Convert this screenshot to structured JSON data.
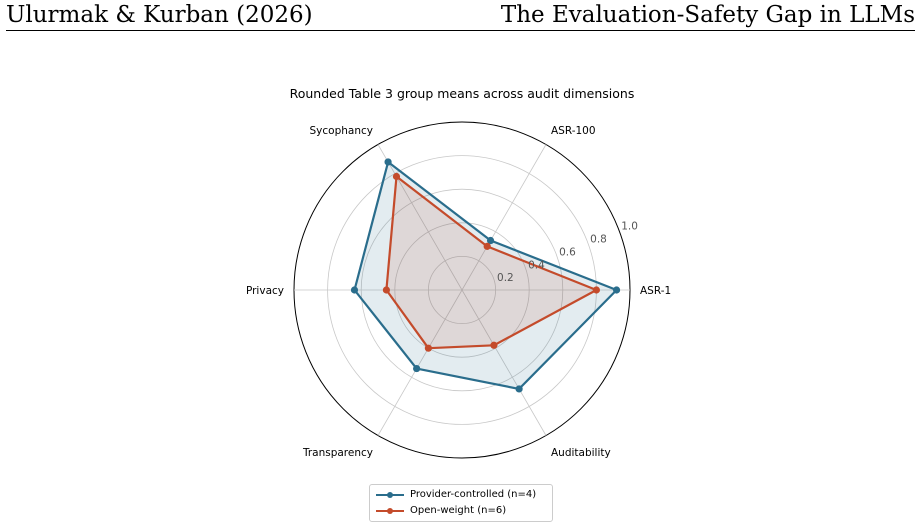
{
  "header": {
    "left": "Ulurmak & Kurban (2026)",
    "right": "The Evaluation-Safety Gap in LLMs"
  },
  "chart_data": {
    "type": "radar",
    "title": "Rounded Table 3 group means across audit dimensions",
    "axes": [
      "ASR-1",
      "ASR-100",
      "Sycophancy",
      "Privacy",
      "Transparency",
      "Auditability"
    ],
    "rlim": [
      0,
      1.0
    ],
    "rticks": [
      "0.2",
      "0.4",
      "0.6",
      "0.8",
      "1.0"
    ],
    "grid": true,
    "legend_position": "bottom-center",
    "series": [
      {
        "name": "Provider-controlled (n=4)",
        "color": "#2a6d8c",
        "values": [
          0.92,
          0.34,
          0.88,
          0.64,
          0.54,
          0.68
        ]
      },
      {
        "name": "Open-weight (n=6)",
        "color": "#c44b2b",
        "values": [
          0.8,
          0.3,
          0.78,
          0.45,
          0.4,
          0.38
        ]
      }
    ]
  }
}
